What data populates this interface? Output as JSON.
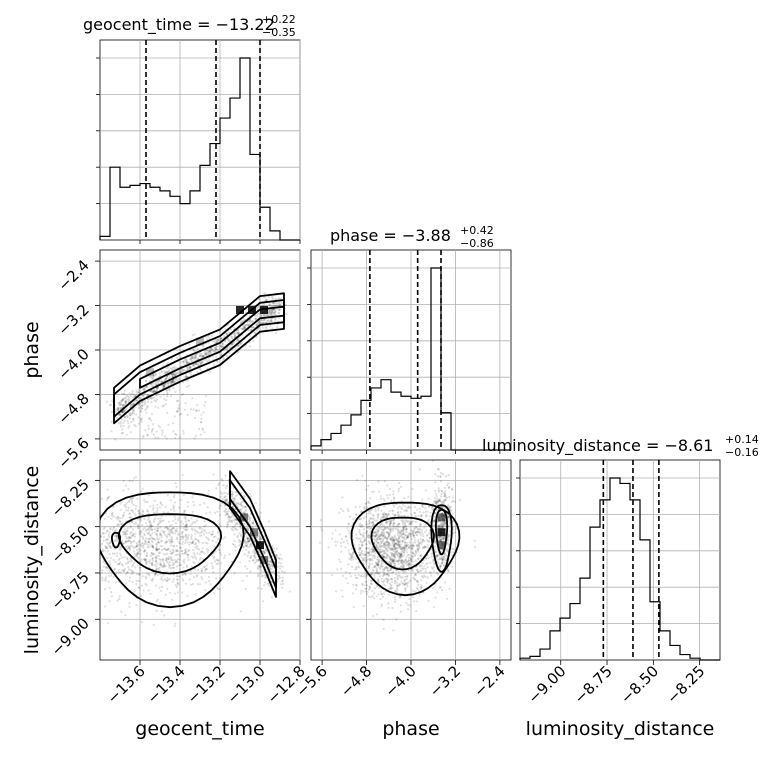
{
  "chart_data": {
    "type": "corner",
    "parameters": [
      {
        "name": "geocent_time",
        "range": [
          -13.8,
          -12.8
        ],
        "median": -13.22,
        "err_plus": "+0.22",
        "err_minus": "−0.35",
        "title_main": "geocent_time = −13.22",
        "quantiles": [
          -13.57,
          -13.22,
          -13.0
        ],
        "ticks": [
          -13.6,
          -13.4,
          -13.2,
          -13.0,
          -12.8
        ],
        "tick_labels": [
          "−13.6",
          "−13.4",
          "−13.2",
          "−13.0",
          "−12.8"
        ],
        "hist_bins": [
          0.02,
          0.4,
          0.29,
          0.3,
          0.31,
          0.29,
          0.27,
          0.24,
          0.2,
          0.27,
          0.41,
          0.53,
          0.67,
          0.78,
          1.0,
          0.47,
          0.18,
          0.05,
          0,
          0
        ]
      },
      {
        "name": "phase",
        "range": [
          -5.8,
          -2.2
        ],
        "median": -3.88,
        "err_plus": "+0.42",
        "err_minus": "−0.86",
        "title_main": "phase = −3.88",
        "quantiles": [
          -4.74,
          -3.88,
          -3.46
        ],
        "ticks": [
          -5.6,
          -4.8,
          -4.0,
          -3.2,
          -2.4
        ],
        "tick_labels": [
          "−5.6",
          "−4.8",
          "−4.0",
          "−3.2",
          "−2.4"
        ],
        "hist_bins": [
          0.02,
          0.05,
          0.08,
          0.12,
          0.17,
          0.24,
          0.3,
          0.34,
          0.28,
          0.26,
          0.25,
          0.26,
          0.88,
          0.18,
          0,
          0,
          0,
          0,
          0,
          0
        ]
      },
      {
        "name": "luminosity_distance",
        "range": [
          -9.22,
          -8.14
        ],
        "median": -8.61,
        "err_plus": "+0.14",
        "err_minus": "−0.16",
        "title_main": "luminosity_distance = −8.61",
        "quantiles": [
          -8.77,
          -8.61,
          -8.47
        ],
        "ticks": [
          -9.0,
          -8.75,
          -8.5,
          -8.25
        ],
        "tick_labels": [
          "−9.00",
          "−8.75",
          "−8.50",
          "−8.25"
        ],
        "hist_bins": [
          0.01,
          0.02,
          0.06,
          0.16,
          0.23,
          0.31,
          0.45,
          0.73,
          0.88,
          1.0,
          0.97,
          0.88,
          0.66,
          0.32,
          0.16,
          0.08,
          0.03,
          0.01,
          0,
          0
        ]
      }
    ],
    "ylim_lumdist": [
      -9.22,
      -8.14
    ],
    "contour_levels": 3,
    "grid": true
  },
  "labels": {
    "x": [
      "geocent_time",
      "phase",
      "luminosity_distance"
    ],
    "y": [
      "phase",
      "luminosity_distance"
    ]
  }
}
